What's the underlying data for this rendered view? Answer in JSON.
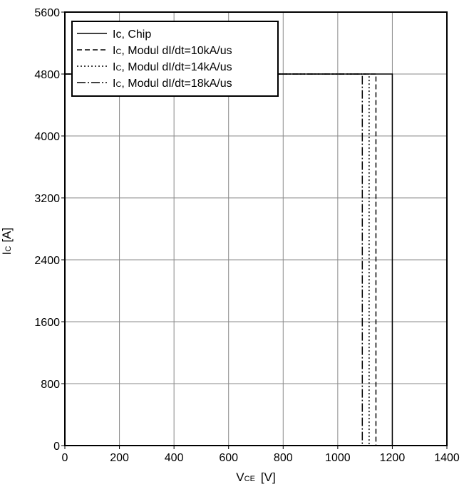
{
  "chart_data": {
    "type": "line",
    "xlabel": {
      "main": "V",
      "sub": "CE",
      "unit": "[V]"
    },
    "ylabel": {
      "main": "I",
      "sub": "C",
      "unit": "[A]"
    },
    "xlim": [
      0,
      1400
    ],
    "ylim": [
      0,
      5600
    ],
    "xticks": [
      0,
      200,
      400,
      600,
      800,
      1000,
      1200,
      1400
    ],
    "yticks": [
      0,
      800,
      1600,
      2400,
      3200,
      4000,
      4800,
      5600
    ],
    "grid": true,
    "legend": "top-left",
    "series": [
      {
        "name": "Ic, Chip",
        "dash": "solid",
        "x": [
          0,
          1200,
          1200
        ],
        "y": [
          4800,
          4800,
          0
        ]
      },
      {
        "name": "IC, Modul dI/dt=10kA/us",
        "dash": "dashed",
        "x": [
          0,
          1140,
          1140
        ],
        "y": [
          4800,
          4800,
          0
        ]
      },
      {
        "name": "IC, Modul dI/dt=14kA/us",
        "dash": "dotted",
        "x": [
          0,
          1115,
          1115
        ],
        "y": [
          4800,
          4800,
          0
        ]
      },
      {
        "name": "IC, Modul dI/dt=18kA/us",
        "dash": "dashdot",
        "x": [
          0,
          1090,
          1090
        ],
        "y": [
          4800,
          4800,
          0
        ]
      }
    ],
    "legend_items": [
      {
        "main": "Ic, Chip",
        "sub": "",
        "rest": ""
      },
      {
        "main": "I",
        "sub": "C",
        "rest": ", Modul dI/dt=10kA/us"
      },
      {
        "main": "I",
        "sub": "C",
        "rest": ", Modul dI/dt=14kA/us"
      },
      {
        "main": "I",
        "sub": "C",
        "rest": ", Modul dI/dt=18kA/us"
      }
    ]
  }
}
